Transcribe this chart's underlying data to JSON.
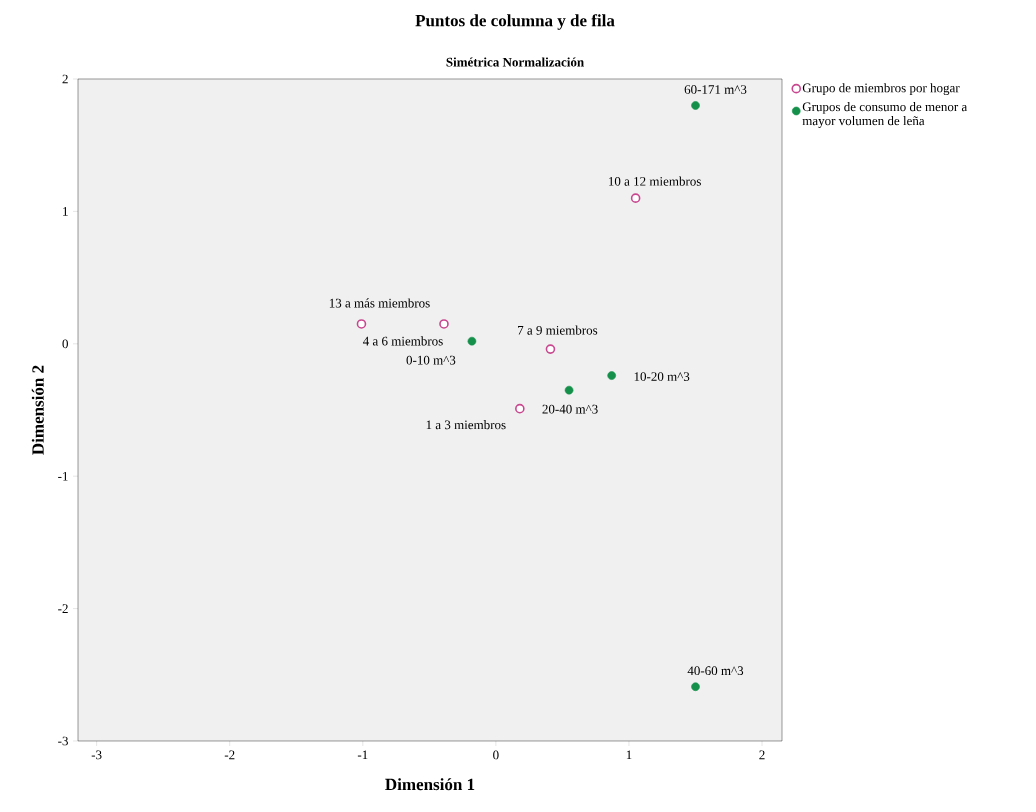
{
  "chart_data": {
    "type": "scatter",
    "title": "Puntos de columna y de fila",
    "subtitle": "Simétrica Normalización",
    "xlabel": "Dimensión 1",
    "ylabel": "Dimensión 2",
    "xlim": [
      -3.14,
      2.15
    ],
    "ylim": [
      -3,
      2
    ],
    "xticks": [
      -3,
      -2,
      -1,
      0,
      1,
      2
    ],
    "yticks": [
      -3,
      -2,
      -1,
      0,
      1,
      2
    ],
    "grid": false,
    "legend": "top right",
    "marker": "circle",
    "series": [
      {
        "name": "Grupo de miembros por hogar",
        "color": "#c8478f",
        "x": [
          1.05,
          -1.01,
          -0.39,
          0.41,
          0.18
        ],
        "values": [
          1.1,
          0.15,
          0.15,
          -0.04,
          -0.49
        ]
      },
      {
        "name": "Grupos de consumo de menor a mayor volumen de leña",
        "color": "#14904a",
        "x": [
          1.5,
          -0.18,
          0.87,
          0.55,
          1.5
        ],
        "values": [
          1.8,
          0.02,
          -0.24,
          -0.35,
          -2.59
        ]
      }
    ],
    "annotations": [
      {
        "text": "10 a 12 miembros",
        "x": 1.05,
        "y": 1.1
      },
      {
        "text": "13 a más miembros",
        "x": -1.01,
        "y": 0.15
      },
      {
        "text": "4 a 6 miembros",
        "x": -0.39,
        "y": 0.15
      },
      {
        "text": "7 a 9 miembros",
        "x": 0.41,
        "y": -0.04
      },
      {
        "text": "1 a 3 miembros",
        "x": 0.18,
        "y": -0.49
      },
      {
        "text": "60-171 m^3",
        "x": 1.5,
        "y": 1.8
      },
      {
        "text": "0-10 m^3",
        "x": -0.18,
        "y": 0.02
      },
      {
        "text": "10-20 m^3",
        "x": 0.87,
        "y": -0.24
      },
      {
        "text": "20-40 m^3",
        "x": 0.55,
        "y": -0.35
      },
      {
        "text": "40-60 m^3",
        "x": 1.5,
        "y": -2.59
      }
    ]
  }
}
